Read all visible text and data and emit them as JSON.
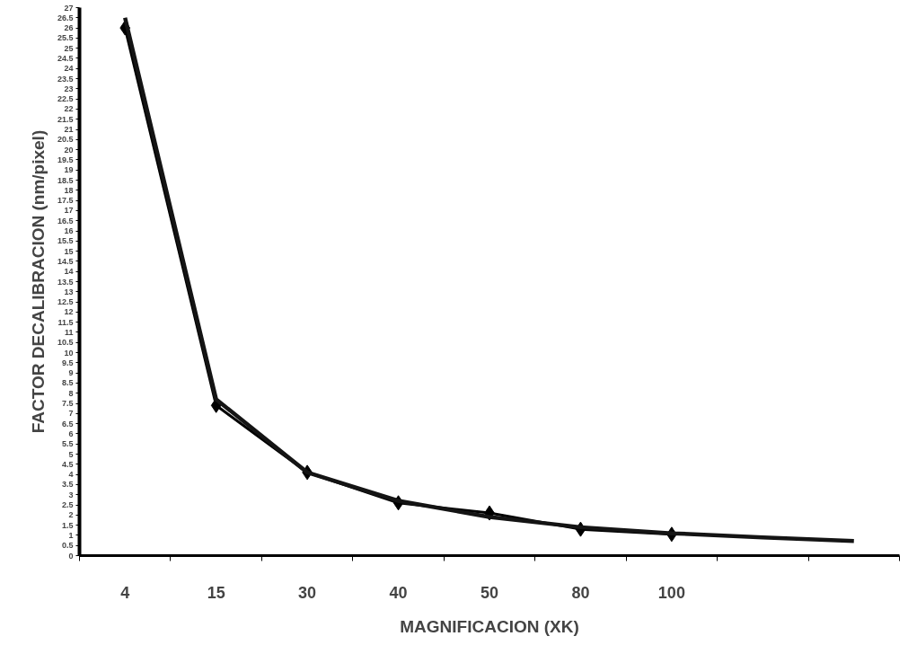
{
  "chart_data": {
    "type": "line",
    "xlabel": "MAGNIFICACION (XK)",
    "ylabel": "FACTOR DECALIBRACION (nm/pixel)",
    "categories": [
      "4",
      "15",
      "30",
      "40",
      "50",
      "80",
      "100",
      null,
      null
    ],
    "ylim": [
      0,
      27
    ],
    "yticks": [
      0,
      0.5,
      1,
      1.5,
      2,
      2.5,
      3,
      3.5,
      4,
      4.5,
      5,
      5.5,
      6,
      6.5,
      7,
      7.5,
      8,
      8.5,
      9,
      9.5,
      10,
      10.5,
      11,
      11.5,
      12,
      12.5,
      13,
      13.5,
      14,
      14.5,
      15,
      15.5,
      16,
      16.5,
      17,
      17.5,
      18,
      18.5,
      19,
      19.5,
      20,
      20.5,
      21,
      21.5,
      22,
      22.5,
      23,
      23.5,
      24,
      24.5,
      25,
      25.5,
      26,
      26.5,
      27
    ],
    "grid": false,
    "series": [
      {
        "color": "#000000",
        "marker": "diamond",
        "values": [
          26,
          7.4,
          4.1,
          2.6,
          2.1,
          1.3,
          1.05,
          null,
          null
        ]
      },
      {
        "type": "line",
        "color": "#141414",
        "marker": "none",
        "values": [
          26.5,
          7.7,
          4.1,
          2.7,
          1.9,
          1.4,
          1.1,
          0.9,
          0.72
        ]
      }
    ]
  }
}
